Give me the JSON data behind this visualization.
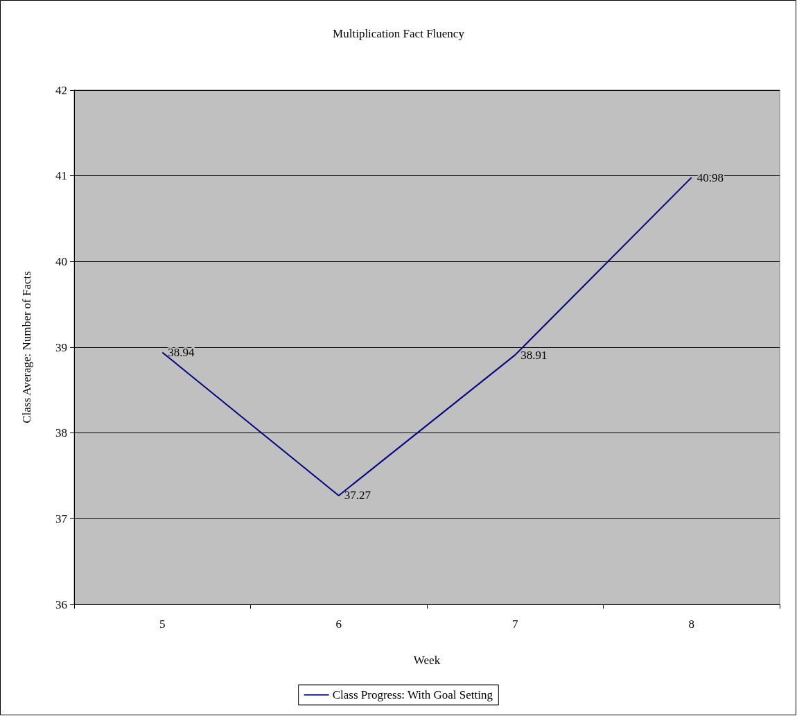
{
  "chart_data": {
    "type": "line",
    "title": "Multiplication Fact Fluency",
    "xlabel": "Week",
    "ylabel": "Class Average: Number of Facts",
    "categories": [
      "5",
      "6",
      "7",
      "8"
    ],
    "series": [
      {
        "name": "Class Progress: With Goal Setting",
        "color": "#000080",
        "values": [
          38.94,
          37.27,
          38.91,
          40.98
        ]
      }
    ],
    "ylim": [
      36,
      42
    ],
    "yticks": [
      36,
      37,
      38,
      39,
      40,
      41,
      42
    ],
    "grid": "y",
    "legend": "bottom",
    "marker": "none",
    "data_labels": true
  }
}
